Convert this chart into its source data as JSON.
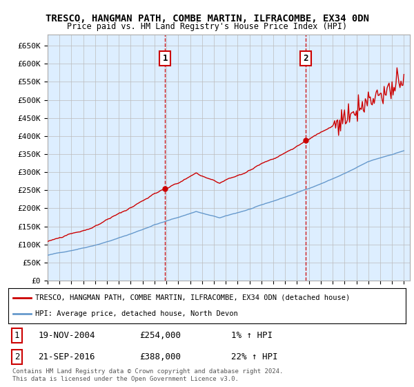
{
  "title": "TRESCO, HANGMAN PATH, COMBE MARTIN, ILFRACOMBE, EX34 0DN",
  "subtitle": "Price paid vs. HM Land Registry's House Price Index (HPI)",
  "ylabel_ticks": [
    "£0",
    "£50K",
    "£100K",
    "£150K",
    "£200K",
    "£250K",
    "£300K",
    "£350K",
    "£400K",
    "£450K",
    "£500K",
    "£550K",
    "£600K",
    "£650K"
  ],
  "ytick_values": [
    0,
    50000,
    100000,
    150000,
    200000,
    250000,
    300000,
    350000,
    400000,
    450000,
    500000,
    550000,
    600000,
    650000
  ],
  "ylim": [
    0,
    680000
  ],
  "xlim_start": 1995.0,
  "xlim_end": 2025.5,
  "sale1_year": 2004.885,
  "sale1_price": 254000,
  "sale1_label": "1",
  "sale1_date": "19-NOV-2004",
  "sale1_pct": "1%",
  "sale2_year": 2016.72,
  "sale2_price": 388000,
  "sale2_label": "2",
  "sale2_date": "21-SEP-2016",
  "sale2_pct": "22%",
  "hpi_color": "#6699cc",
  "price_color": "#cc0000",
  "background_plot": "#ddeeff",
  "grid_color": "#bbbbbb",
  "legend_label1": "TRESCO, HANGMAN PATH, COMBE MARTIN, ILFRACOMBE, EX34 0DN (detached house)",
  "legend_label2": "HPI: Average price, detached house, North Devon",
  "footnote": "Contains HM Land Registry data © Crown copyright and database right 2024.\nThis data is licensed under the Open Government Licence v3.0.",
  "marker_box_color": "#cc0000"
}
